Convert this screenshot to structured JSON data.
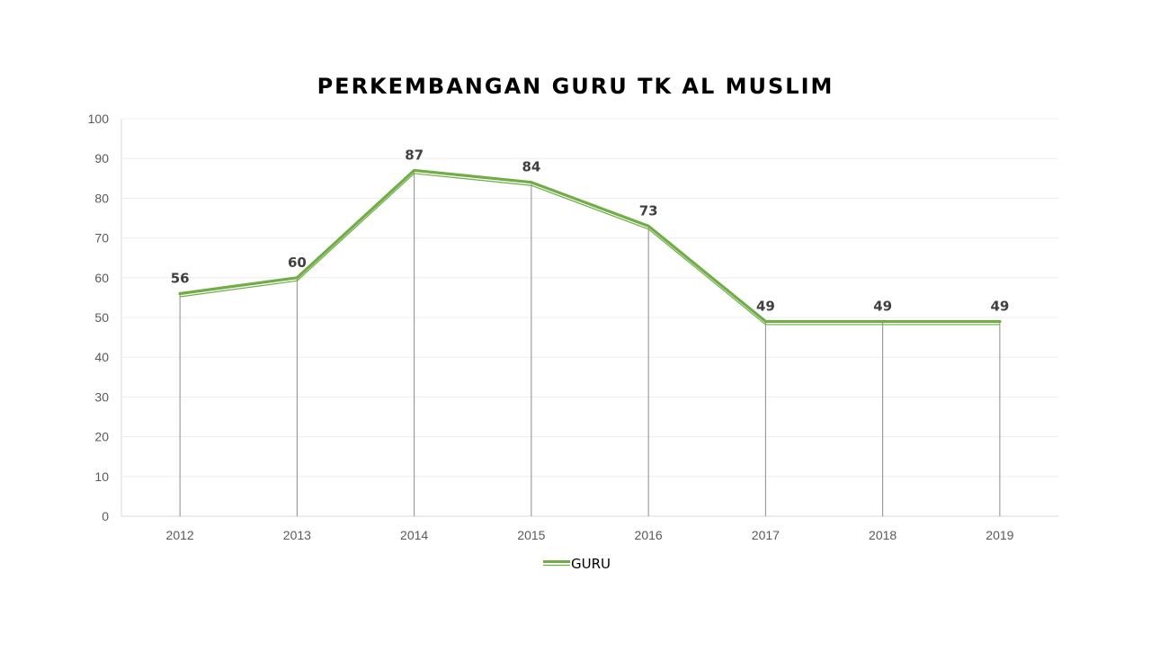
{
  "chart_data": {
    "type": "line",
    "title": "PERKEMBANGAN GURU TK AL MUSLIM",
    "categories": [
      "2012",
      "2013",
      "2014",
      "2015",
      "2016",
      "2017",
      "2018",
      "2019"
    ],
    "series": [
      {
        "name": "GURU",
        "values": [
          56,
          60,
          87,
          84,
          73,
          49,
          49,
          49
        ],
        "color": "#70AD47"
      }
    ],
    "ylim": [
      0,
      100
    ],
    "yticks": [
      0,
      10,
      20,
      30,
      40,
      50,
      60,
      70,
      80,
      90,
      100
    ],
    "grid": true,
    "drop_lines": true,
    "data_labels": true,
    "legend_position": "bottom"
  }
}
